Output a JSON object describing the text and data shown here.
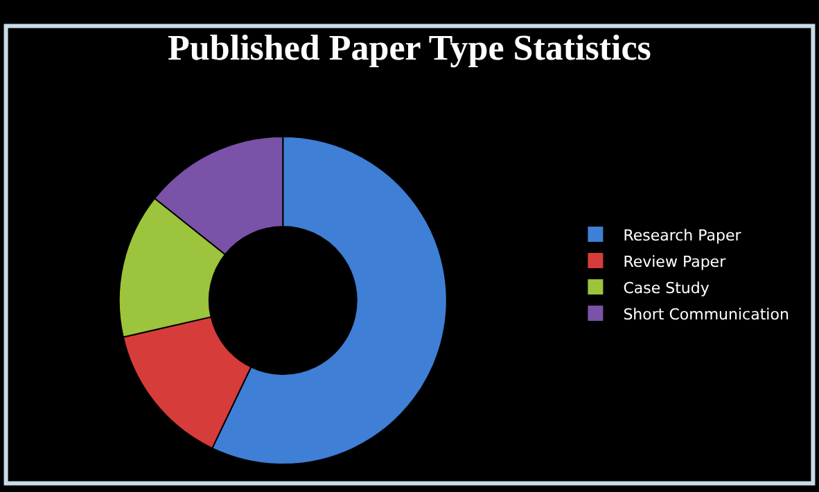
{
  "chart_data": {
    "type": "donut",
    "title": "Published Paper Type Statistics",
    "categories": [
      "Research Paper",
      "Review Paper",
      "Case Study",
      "Short Communication"
    ],
    "values": [
      57.1,
      14.3,
      14.3,
      14.3
    ],
    "colors": [
      "#3f7fd6",
      "#d63c3a",
      "#9cc43c",
      "#7a52a8"
    ],
    "legend": "right"
  }
}
